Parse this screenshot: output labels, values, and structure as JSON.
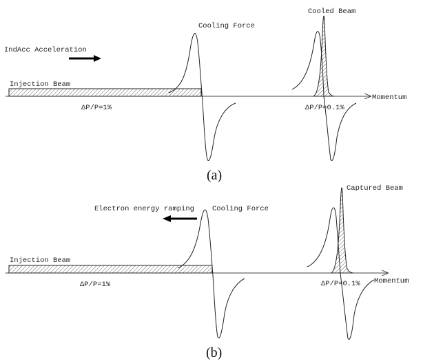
{
  "panel_a": {
    "caption": "(a)",
    "acceleration_label": "IndAcc Acceleration",
    "cooling_force_label": "Cooling Force",
    "cooled_beam_label": "Cooled Beam",
    "injection_beam_label": "Injection Beam",
    "momentum_label": "Momentum",
    "wide_spread_label": "ΔP/P=1%",
    "narrow_spread_label": "ΔP/P=0.1%"
  },
  "panel_b": {
    "caption": "(b)",
    "ramping_label": "Electron energy ramping",
    "cooling_force_label": "Cooling Force",
    "captured_beam_label": "Captured Beam",
    "injection_beam_label": "Injection Beam",
    "momentum_label": "Momentum",
    "wide_spread_label": "ΔP/P=1%",
    "narrow_spread_label": "ΔP/P=0.1%"
  },
  "colors": {
    "line": "#222222",
    "hatch": "#666666",
    "arrow": "#000000"
  }
}
